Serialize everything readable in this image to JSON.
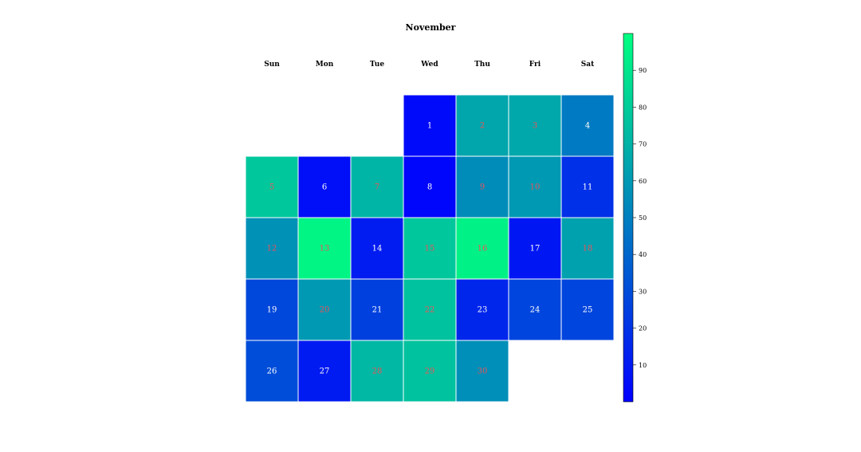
{
  "chart_data": {
    "type": "heatmap",
    "title": "November",
    "weekdays": [
      "Sun",
      "Mon",
      "Tue",
      "Wed",
      "Thu",
      "Fri",
      "Sat"
    ],
    "first_weekday_index": 3,
    "days": [
      1,
      2,
      3,
      4,
      5,
      6,
      7,
      8,
      9,
      10,
      11,
      12,
      13,
      14,
      15,
      16,
      17,
      18,
      19,
      20,
      21,
      22,
      23,
      24,
      25,
      26,
      27,
      28,
      29,
      30
    ],
    "values": [
      4,
      65,
      66,
      48,
      78,
      6,
      71,
      2,
      55,
      60,
      19,
      57,
      96,
      11,
      78,
      95,
      9,
      63,
      28,
      60,
      25,
      76,
      15,
      27,
      27,
      30,
      10,
      72,
      76,
      56
    ],
    "scale": {
      "min": 0,
      "max": 100,
      "ticks": [
        10,
        20,
        30,
        40,
        50,
        60,
        70,
        80,
        90
      ],
      "low_color": "#0000ff",
      "high_color": "#00ff80"
    },
    "label_colors": {
      "low": "#ffffff",
      "high": "#e8555a",
      "threshold": 50
    },
    "colorbar_position": "right"
  }
}
